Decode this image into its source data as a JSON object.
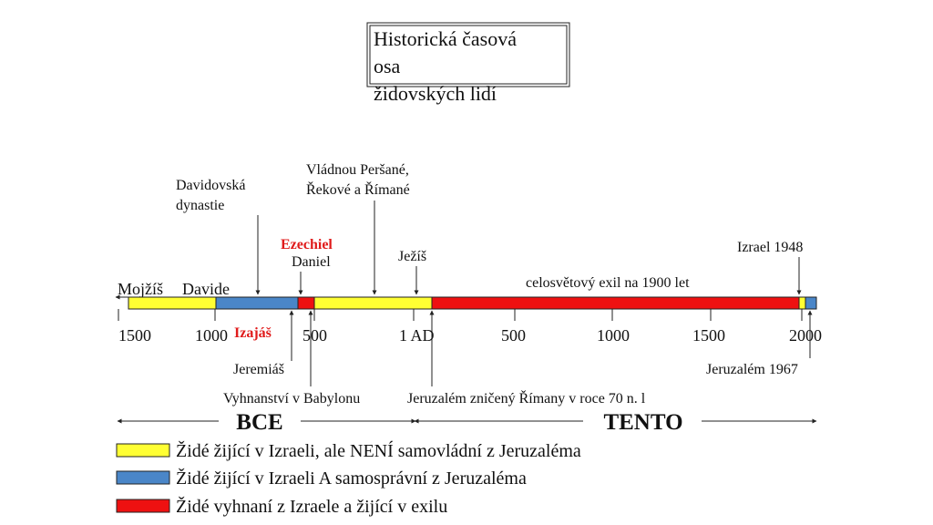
{
  "header": {
    "title": [
      "Historická časová",
      "osa",
      "židovských lidí"
    ]
  },
  "bar_labels": {
    "moses": "Mojžíš",
    "david": "Davide",
    "exile": "celosvětový exil na 1900 let"
  },
  "annotations_above": [
    {
      "lines": [
        "Davidovská",
        "dynastie"
      ]
    },
    {
      "lines": [
        "Vládnou Peršané,",
        "Řekové a Římané"
      ]
    },
    {
      "lines": [
        "Ezechiel",
        "Daniel"
      ]
    },
    {
      "lines": [
        "Ježíš"
      ]
    },
    {
      "lines": [
        "Izrael 1948"
      ]
    }
  ],
  "axis_labels": [
    "1500",
    "1000",
    "500",
    "1 AD",
    "500",
    "1000",
    "1500",
    "2000"
  ],
  "annotations_below": [
    "Izajáš",
    "Jeremiáš",
    "Jeruzalém 1967",
    "Vyhnanství v Babylonu",
    "Jeruzalém zničený Římany v roce 70 n. l"
  ],
  "eras": [
    "BCE",
    "TENTO"
  ],
  "legend": [
    "Židé žijící v Izraeli, ale NENÍ samovládní z Jeruzaléma",
    "Židé žijící v Izraeli A samosprávní z Jeruzaléma",
    "Židé vyhnaní z Izraele a žijící v exilu"
  ]
}
